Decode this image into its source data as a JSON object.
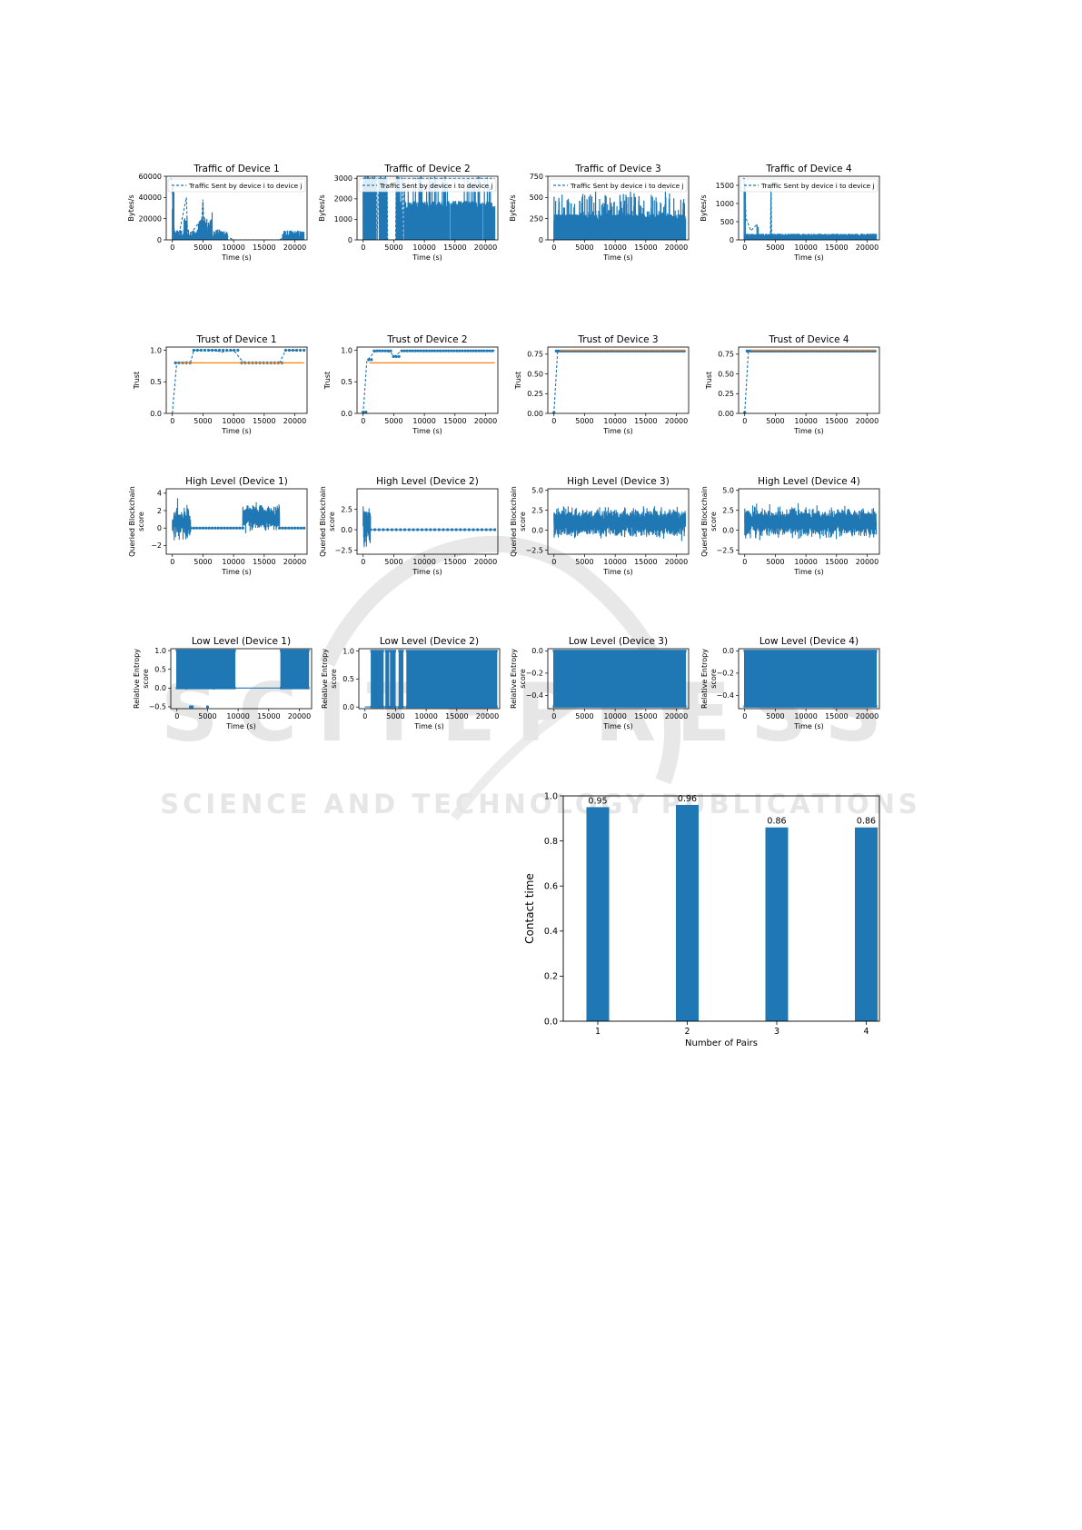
{
  "colors": {
    "series": "#1f77b4",
    "threshold": "#ff7f0e",
    "axis": "#000000",
    "watermark": "#e3e3e3"
  },
  "watermark": {
    "line1": "SCITEPRESS",
    "line2": "SCIENCE AND TECHNOLOGY PUBLICATIONS"
  },
  "panels": [
    {
      "row": "traffic",
      "title": "Traffic of Device 1",
      "xlabel": "Time (s)",
      "ylabel": [
        "Bytes/s"
      ],
      "ylim": [
        0,
        60000
      ],
      "yticks": [
        0,
        20000,
        40000,
        60000
      ],
      "legend": "Traffic Sent by device i to device j",
      "profile": "traffic1"
    },
    {
      "row": "traffic",
      "title": "Traffic of Device 2",
      "xlabel": "Time (s)",
      "ylabel": [
        "Bytes/s"
      ],
      "ylim": [
        0,
        3100
      ],
      "yticks": [
        0,
        1000,
        2000,
        3000
      ],
      "legend": "Traffic Sent by device i to device j",
      "profile": "traffic2"
    },
    {
      "row": "traffic",
      "title": "Traffic of Device 3",
      "xlabel": "Time (s)",
      "ylabel": [
        "Bytes/s"
      ],
      "ylim": [
        0,
        750
      ],
      "yticks": [
        0,
        250,
        500,
        750
      ],
      "legend": "Traffic Sent by device i to device j",
      "profile": "traffic3"
    },
    {
      "row": "traffic",
      "title": "Traffic of Device 4",
      "xlabel": "Time (s)",
      "ylabel": [
        "Bytes/s"
      ],
      "ylim": [
        0,
        1750
      ],
      "yticks": [
        0,
        500,
        1000,
        1500
      ],
      "legend": "Traffic Sent by device i to device j",
      "profile": "traffic4"
    },
    {
      "row": "trust",
      "title": "Trust of Device 1",
      "xlabel": "Time (s)",
      "ylabel": [
        "Trust"
      ],
      "ylim": [
        0,
        1.05
      ],
      "yticks": [
        0.0,
        0.5,
        1.0
      ],
      "threshold": 0.8,
      "profile": "trust1"
    },
    {
      "row": "trust",
      "title": "Trust of Device 2",
      "xlabel": "Time (s)",
      "ylabel": [
        "Trust"
      ],
      "ylim": [
        0,
        1.05
      ],
      "yticks": [
        0.0,
        0.5,
        1.0
      ],
      "threshold": 0.8,
      "profile": "trust2"
    },
    {
      "row": "trust",
      "title": "Trust of Device 3",
      "xlabel": "Time (s)",
      "ylabel": [
        "Trust"
      ],
      "ylim": [
        0,
        0.84
      ],
      "yticks": [
        0.0,
        0.25,
        0.5,
        0.75
      ],
      "threshold": 0.8,
      "profile": "trust3"
    },
    {
      "row": "trust",
      "title": "Trust of Device 4",
      "xlabel": "Time (s)",
      "ylabel": [
        "Trust"
      ],
      "ylim": [
        0,
        0.84
      ],
      "yticks": [
        0.0,
        0.25,
        0.5,
        0.75
      ],
      "threshold": 0.8,
      "profile": "trust4"
    },
    {
      "row": "high",
      "title": "High Level (Device 1)",
      "xlabel": "Time (s)",
      "ylabel": [
        "Queried Blockchain",
        "score"
      ],
      "ylim": [
        -3,
        4.5
      ],
      "yticks": [
        -2,
        0,
        2,
        4
      ],
      "profile": "high1"
    },
    {
      "row": "high",
      "title": "High Level (Device 2)",
      "xlabel": "Time (s)",
      "ylabel": [
        "Queried Blockchain",
        "score"
      ],
      "ylim": [
        -3,
        5
      ],
      "yticks": [
        -2.5,
        0.0,
        2.5
      ],
      "profile": "high2"
    },
    {
      "row": "high",
      "title": "High Level (Device 3)",
      "xlabel": "Time (s)",
      "ylabel": [
        "Queried Blockchain",
        "score"
      ],
      "ylim": [
        -3,
        5.2
      ],
      "yticks": [
        -2.5,
        0.0,
        2.5,
        5.0
      ],
      "profile": "high3"
    },
    {
      "row": "high",
      "title": "High Level (Device 4)",
      "xlabel": "Time (s)",
      "ylabel": [
        "Queried Blockchain",
        "score"
      ],
      "ylim": [
        -3,
        5.2
      ],
      "yticks": [
        -2.5,
        0.0,
        2.5,
        5.0
      ],
      "profile": "high4"
    },
    {
      "row": "low",
      "title": "Low Level (Device 1)",
      "xlabel": "Time (s)",
      "ylabel": [
        "Relative Entropy",
        "score"
      ],
      "ylim": [
        -0.55,
        1.05
      ],
      "yticks": [
        -0.5,
        0.0,
        0.5,
        1.0
      ],
      "profile": "low1"
    },
    {
      "row": "low",
      "title": "Low Level (Device 2)",
      "xlabel": "Time (s)",
      "ylabel": [
        "Relative Entropy",
        "score"
      ],
      "ylim": [
        -0.03,
        1.04
      ],
      "yticks": [
        0.0,
        0.5,
        1.0
      ],
      "profile": "low2"
    },
    {
      "row": "low",
      "title": "Low Level (Device 3)",
      "xlabel": "Time (s)",
      "ylabel": [
        "Relative Entropy",
        "score"
      ],
      "ylim": [
        -0.52,
        0.02
      ],
      "yticks": [
        0.0,
        -0.2,
        -0.4
      ],
      "profile": "low3"
    },
    {
      "row": "low",
      "title": "Low Level (Device 4)",
      "xlabel": "Time (s)",
      "ylabel": [
        "Relative Entropy",
        "score"
      ],
      "ylim": [
        -0.52,
        0.02
      ],
      "yticks": [
        0.0,
        -0.2,
        -0.4
      ],
      "profile": "low4"
    }
  ],
  "xaxis": {
    "ticks": [
      0,
      5000,
      10000,
      15000,
      20000
    ],
    "xlim": [
      -1000,
      22000
    ]
  },
  "chart_data": {
    "type": "bar",
    "categories": [
      "1",
      "2",
      "3",
      "4"
    ],
    "values": [
      0.95,
      0.96,
      0.86,
      0.86
    ],
    "value_labels": [
      "0.95",
      "0.96",
      "0.86",
      "0.86"
    ],
    "xlabel": "Number of Pairs",
    "ylabel": "Contact time",
    "ylim": [
      0,
      1.0
    ],
    "yticks": [
      "0.0",
      "0.2",
      "0.4",
      "0.6",
      "0.8",
      "1.0"
    ]
  }
}
